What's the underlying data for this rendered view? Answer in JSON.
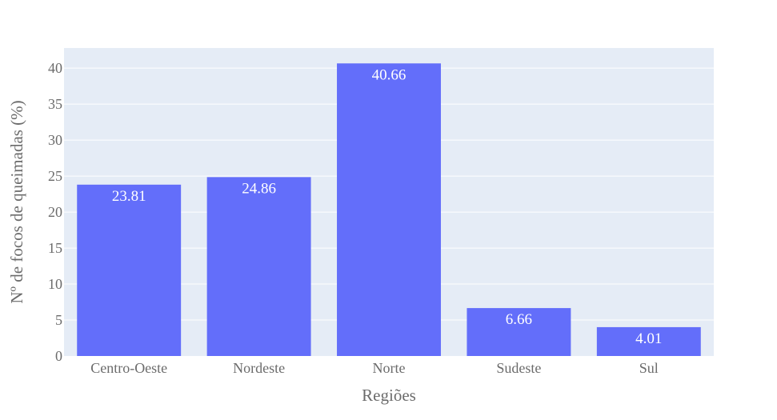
{
  "chart_data": {
    "type": "bar",
    "categories": [
      "Centro-Oeste",
      "Nordeste",
      "Norte",
      "Sudeste",
      "Sul"
    ],
    "values": [
      23.81,
      24.86,
      40.66,
      6.66,
      4.01
    ],
    "data_labels": [
      "23.81",
      "24.86",
      "40.66",
      "6.66",
      "4.01"
    ],
    "xlabel": "Regiões",
    "ylabel": "Nº de focos de queimadas (%)",
    "ylim": [
      0,
      42.8
    ],
    "yticks": [
      0,
      5,
      10,
      15,
      20,
      25,
      30,
      35,
      40
    ],
    "grid": true,
    "colors": {
      "bar": "#636efa",
      "plot_background": "#e5ecf6",
      "grid": "#ffffff",
      "text": "#6b6b6b",
      "bar_label": "#ffffff"
    }
  }
}
